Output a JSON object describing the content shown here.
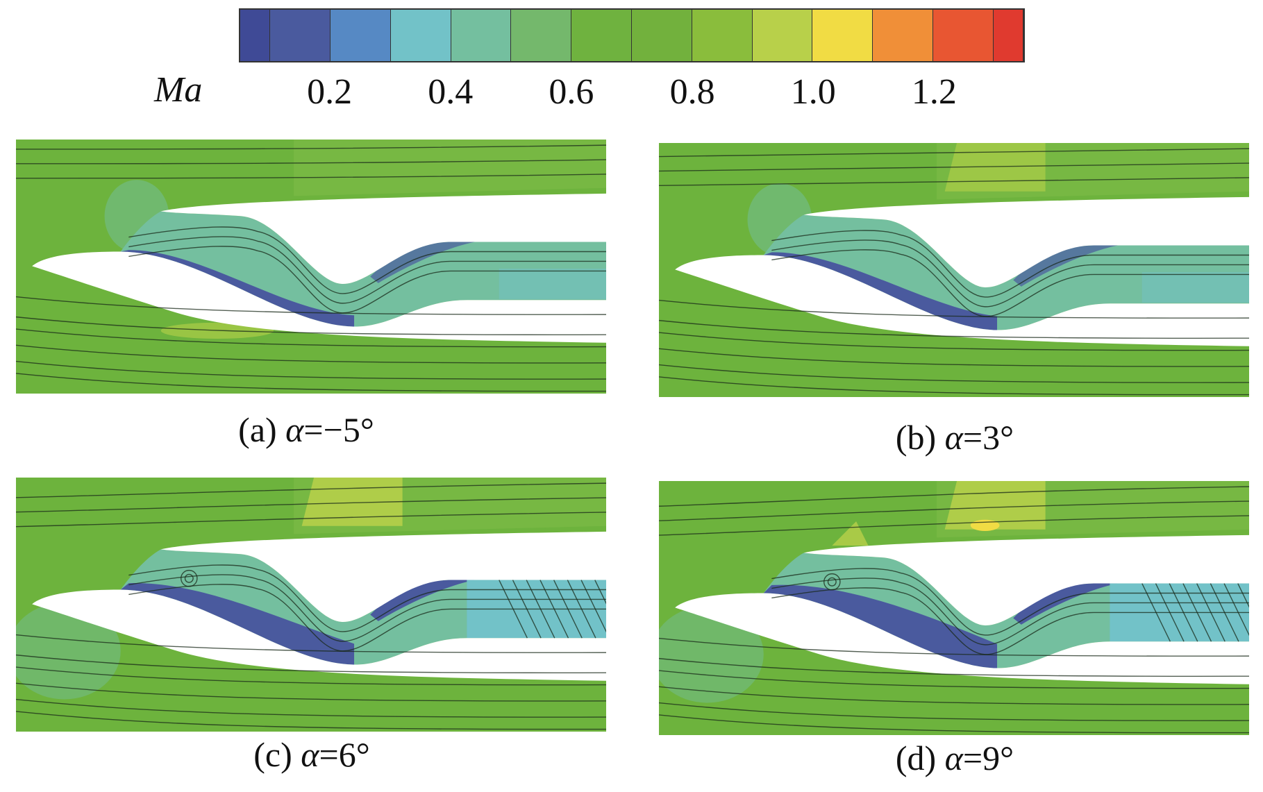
{
  "colorbar": {
    "variable": "Ma",
    "ticks": [
      "0.2",
      "0.4",
      "0.6",
      "0.8",
      "1.0",
      "1.2"
    ],
    "tick_values": [
      0.2,
      0.4,
      0.6,
      0.8,
      1.0,
      1.2
    ],
    "range": [
      0.05,
      1.35
    ],
    "colors": [
      "#3f4a96",
      "#4a5a9e",
      "#5689c4",
      "#72c2c8",
      "#74bf9f",
      "#74b86c",
      "#6fb23f",
      "#72b13d",
      "#8abd3c",
      "#b8d04a",
      "#f1dc44",
      "#f08f38",
      "#e85632",
      "#e03a2f"
    ]
  },
  "field_color": "#6db33d",
  "panels": [
    {
      "letter": "(a)",
      "symbol": "α",
      "value": "=−5°"
    },
    {
      "letter": "(b)",
      "symbol": "α",
      "value": "=3°"
    },
    {
      "letter": "(c)",
      "symbol": "α",
      "value": "=6°"
    },
    {
      "letter": "(d)",
      "symbol": "α",
      "value": "=9°"
    }
  ]
}
